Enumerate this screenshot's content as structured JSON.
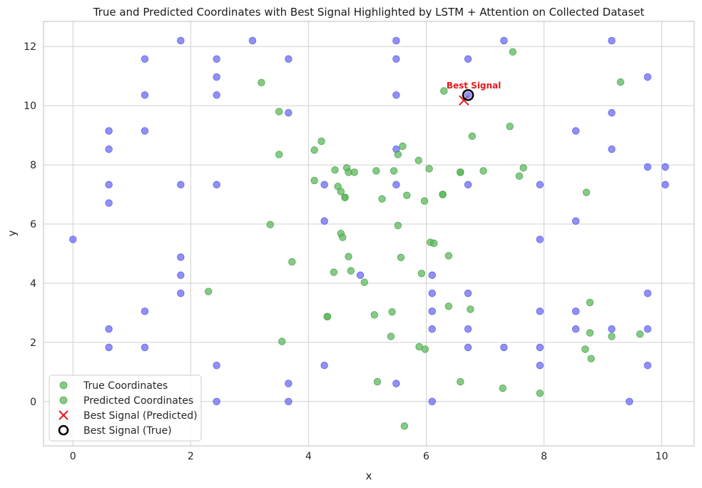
{
  "chart_data": {
    "type": "scatter",
    "title": "True and Predicted Coordinates with Best Signal Highlighted by LSTM + Attention on Collected Dataset",
    "xlabel": "x",
    "ylabel": "y",
    "xlim": [
      -0.5,
      10.55
    ],
    "ylim": [
      -1.5,
      12.85
    ],
    "xticks": [
      0,
      2,
      4,
      6,
      8,
      10
    ],
    "yticks": [
      0,
      2,
      4,
      6,
      8,
      10,
      12
    ],
    "grid": true,
    "legend_position": "lower-left",
    "colors": {
      "true": "#6b6bf5",
      "predicted": "#5cb85c",
      "best_predicted": "#e31a1c",
      "best_true": "#000000",
      "annotation": "#e31a1c",
      "grid": "#d0d0d0",
      "frame": "#c8c8c8"
    },
    "series": [
      {
        "name": "True Coordinates",
        "marker": "circle",
        "points": [
          [
            0,
            5.48
          ],
          [
            0.61,
            9.15
          ],
          [
            0.61,
            8.53
          ],
          [
            0.61,
            7.33
          ],
          [
            0.61,
            6.71
          ],
          [
            0.61,
            2.45
          ],
          [
            0.61,
            1.83
          ],
          [
            1.22,
            11.58
          ],
          [
            1.22,
            10.36
          ],
          [
            1.22,
            9.15
          ],
          [
            1.22,
            3.05
          ],
          [
            1.22,
            1.83
          ],
          [
            1.83,
            12.2
          ],
          [
            1.83,
            7.33
          ],
          [
            1.83,
            4.88
          ],
          [
            1.83,
            4.27
          ],
          [
            1.83,
            3.66
          ],
          [
            2.44,
            11.58
          ],
          [
            2.44,
            10.97
          ],
          [
            2.44,
            10.36
          ],
          [
            2.44,
            7.33
          ],
          [
            2.44,
            1.22
          ],
          [
            2.44,
            0
          ],
          [
            3.05,
            12.2
          ],
          [
            3.66,
            11.58
          ],
          [
            3.66,
            9.76
          ],
          [
            3.66,
            0.61
          ],
          [
            3.66,
            0
          ],
          [
            4.27,
            7.33
          ],
          [
            4.27,
            6.1
          ],
          [
            4.27,
            1.22
          ],
          [
            4.88,
            4.27
          ],
          [
            5.49,
            12.2
          ],
          [
            5.49,
            11.58
          ],
          [
            5.49,
            10.36
          ],
          [
            5.49,
            8.53
          ],
          [
            5.49,
            7.33
          ],
          [
            5.49,
            0.61
          ],
          [
            6.1,
            4.27
          ],
          [
            6.1,
            3.66
          ],
          [
            6.1,
            3.05
          ],
          [
            6.1,
            2.45
          ],
          [
            6.1,
            0
          ],
          [
            6.71,
            11.58
          ],
          [
            6.71,
            7.33
          ],
          [
            6.71,
            3.66
          ],
          [
            6.71,
            2.45
          ],
          [
            6.71,
            1.83
          ],
          [
            7.32,
            12.2
          ],
          [
            7.32,
            1.83
          ],
          [
            7.93,
            7.33
          ],
          [
            7.93,
            5.48
          ],
          [
            7.93,
            3.05
          ],
          [
            7.93,
            1.83
          ],
          [
            7.93,
            1.22
          ],
          [
            8.54,
            9.15
          ],
          [
            8.54,
            6.1
          ],
          [
            8.54,
            3.05
          ],
          [
            8.54,
            2.45
          ],
          [
            9.15,
            12.2
          ],
          [
            9.15,
            9.76
          ],
          [
            9.15,
            8.53
          ],
          [
            9.15,
            2.45
          ],
          [
            9.45,
            0
          ],
          [
            9.76,
            10.97
          ],
          [
            9.76,
            7.93
          ],
          [
            9.76,
            3.66
          ],
          [
            9.76,
            2.45
          ],
          [
            9.76,
            1.22
          ],
          [
            10.06,
            7.93
          ],
          [
            10.06,
            7.33
          ]
        ]
      },
      {
        "name": "Predicted Coordinates",
        "marker": "circle",
        "points": [
          [
            3.2,
            10.78
          ],
          [
            3.5,
            9.8
          ],
          [
            3.5,
            8.35
          ],
          [
            3.35,
            5.98
          ],
          [
            3.72,
            4.72
          ],
          [
            2.3,
            3.72
          ],
          [
            3.55,
            2.03
          ],
          [
            4.1,
            8.5
          ],
          [
            4.22,
            8.8
          ],
          [
            4.1,
            7.47
          ],
          [
            4.45,
            7.83
          ],
          [
            4.5,
            7.27
          ],
          [
            4.55,
            7.1
          ],
          [
            4.65,
            7.9
          ],
          [
            4.68,
            7.75
          ],
          [
            4.78,
            7.75
          ],
          [
            4.62,
            6.9
          ],
          [
            4.62,
            6.9
          ],
          [
            4.55,
            5.68
          ],
          [
            4.58,
            5.55
          ],
          [
            4.68,
            4.9
          ],
          [
            4.43,
            4.37
          ],
          [
            4.72,
            4.42
          ],
          [
            4.95,
            4.03
          ],
          [
            4.32,
            2.87
          ],
          [
            4.32,
            2.87
          ],
          [
            5.15,
            7.8
          ],
          [
            5.25,
            6.85
          ],
          [
            5.45,
            7.8
          ],
          [
            5.52,
            8.35
          ],
          [
            5.6,
            8.63
          ],
          [
            5.67,
            6.97
          ],
          [
            5.52,
            5.95
          ],
          [
            5.57,
            4.87
          ],
          [
            5.42,
            3.03
          ],
          [
            5.12,
            2.93
          ],
          [
            5.4,
            2.2
          ],
          [
            5.17,
            0.67
          ],
          [
            5.63,
            -0.83
          ],
          [
            5.87,
            8.15
          ],
          [
            6.05,
            7.87
          ],
          [
            5.97,
            6.78
          ],
          [
            5.92,
            4.33
          ],
          [
            6.07,
            5.38
          ],
          [
            6.13,
            5.35
          ],
          [
            5.88,
            1.85
          ],
          [
            5.98,
            1.77
          ],
          [
            6.3,
            10.5
          ],
          [
            6.58,
            7.75
          ],
          [
            6.58,
            7.75
          ],
          [
            6.28,
            7.0
          ],
          [
            6.28,
            7.0
          ],
          [
            6.38,
            4.93
          ],
          [
            6.38,
            3.22
          ],
          [
            6.75,
            3.12
          ],
          [
            6.58,
            0.67
          ],
          [
            6.78,
            8.97
          ],
          [
            6.97,
            7.8
          ],
          [
            7.42,
            9.3
          ],
          [
            7.47,
            11.82
          ],
          [
            7.58,
            7.62
          ],
          [
            7.65,
            7.9
          ],
          [
            7.3,
            0.45
          ],
          [
            7.93,
            0.28
          ],
          [
            8.72,
            7.07
          ],
          [
            8.78,
            3.35
          ],
          [
            8.78,
            2.32
          ],
          [
            8.8,
            1.45
          ],
          [
            8.7,
            1.77
          ],
          [
            9.3,
            10.8
          ],
          [
            9.15,
            2.2
          ],
          [
            9.63,
            2.28
          ]
        ]
      },
      {
        "name": "Best Signal (Predicted)",
        "marker": "x",
        "points": [
          [
            6.64,
            10.18
          ]
        ]
      },
      {
        "name": "Best Signal (True)",
        "marker": "ring",
        "points": [
          [
            6.71,
            10.36
          ]
        ]
      }
    ],
    "annotations": [
      {
        "text": "Best Signal",
        "x": 6.71,
        "y": 10.36
      }
    ]
  }
}
